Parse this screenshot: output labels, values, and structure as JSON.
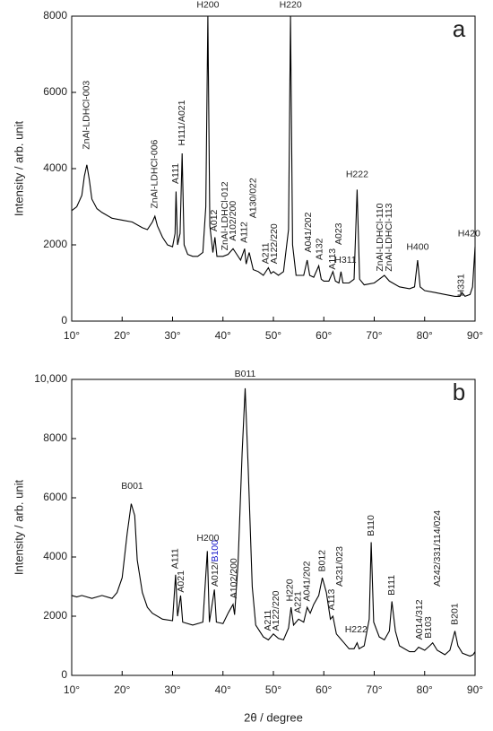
{
  "chart_data": [
    {
      "type": "line",
      "label": "a",
      "ylabel": "Intensity / arb. unit",
      "color": "#000000",
      "xlim": [
        10,
        90
      ],
      "ylim": [
        0,
        8000
      ],
      "xticks": [
        {
          "value": 10,
          "label": "10°"
        },
        {
          "value": 20,
          "label": "20°"
        },
        {
          "value": 30,
          "label": "30°"
        },
        {
          "value": 40,
          "label": "40°"
        },
        {
          "value": 50,
          "label": "50°"
        },
        {
          "value": 60,
          "label": "60°"
        },
        {
          "value": 70,
          "label": "70°"
        },
        {
          "value": 80,
          "label": "80°"
        },
        {
          "value": 90,
          "label": "90°"
        }
      ],
      "yticks": [
        0,
        2000,
        4000,
        6000,
        8000
      ],
      "x": [
        10,
        11,
        12,
        12.5,
        13,
        13.5,
        14,
        15,
        16,
        18,
        20,
        22,
        24,
        25,
        26,
        26.5,
        27,
        28,
        29,
        30,
        30.5,
        30.7,
        31,
        31.5,
        31.9,
        32.3,
        33,
        34,
        35,
        36,
        36.6,
        37,
        37.4,
        38,
        38.4,
        38.8,
        40,
        41,
        42,
        42.5,
        43.5,
        44.3,
        44.6,
        45.2,
        46,
        47,
        48,
        49,
        49.5,
        50,
        51,
        52,
        53,
        53.4,
        53.8,
        54.5,
        55,
        56,
        56.7,
        57.2,
        58,
        59,
        59.5,
        60,
        61,
        61.8,
        62.3,
        63,
        63.4,
        63.8,
        65,
        66,
        66.6,
        67.1,
        68,
        70,
        71,
        72,
        73,
        75,
        77,
        78,
        78.6,
        79.1,
        80,
        82,
        84,
        86,
        87,
        87.4,
        88,
        89,
        89.5,
        90
      ],
      "values": [
        2900,
        3000,
        3300,
        3800,
        4100,
        3700,
        3200,
        2950,
        2850,
        2700,
        2650,
        2600,
        2450,
        2400,
        2600,
        2750,
        2500,
        2200,
        2000,
        1950,
        2300,
        3400,
        2000,
        2300,
        4400,
        2000,
        1750,
        1700,
        1700,
        1800,
        3000,
        8000,
        2500,
        1800,
        2200,
        1700,
        1700,
        1750,
        1900,
        1800,
        1600,
        1900,
        1500,
        1800,
        1350,
        1300,
        1200,
        1400,
        1250,
        1300,
        1200,
        1300,
        2400,
        8000,
        2000,
        1200,
        1200,
        1200,
        1600,
        1200,
        1150,
        1450,
        1100,
        1050,
        1050,
        1300,
        1050,
        1000,
        1300,
        1000,
        1000,
        1100,
        3450,
        1100,
        950,
        1000,
        1100,
        1200,
        1050,
        900,
        850,
        900,
        1600,
        900,
        800,
        750,
        700,
        650,
        650,
        750,
        650,
        700,
        900,
        1950
      ],
      "annotations": [
        {
          "text": "ZnAl-LDHCl-003",
          "color": "#e00000",
          "x": 13,
          "y": 4500,
          "vertical": true
        },
        {
          "text": "ZnAl-LDHCl-006",
          "color": "#e00000",
          "x": 26.5,
          "y": 2950,
          "vertical": true
        },
        {
          "text": "A111",
          "color": "#222222",
          "x": 30.7,
          "y": 3600,
          "vertical": true
        },
        {
          "text": "H111/A021",
          "color": "#222222",
          "x": 31.9,
          "y": 4600,
          "vertical": true
        },
        {
          "text": "H200",
          "color": "#222222",
          "x": 37,
          "y": 8150,
          "vertical": false
        },
        {
          "text": "A012",
          "color": "#222222",
          "x": 38.3,
          "y": 2350,
          "vertical": true
        },
        {
          "text": "ZnAl-LDHCl-012",
          "color": "#e00000",
          "x": 40.4,
          "y": 1850,
          "vertical": true
        },
        {
          "text": "A102/200",
          "color": "#222222",
          "x": 42,
          "y": 2100,
          "vertical": true
        },
        {
          "text": "A112",
          "color": "#222222",
          "x": 44.3,
          "y": 2050,
          "vertical": true
        },
        {
          "text": "A130/022",
          "color": "#222222",
          "x": 46,
          "y": 2700,
          "vertical": true
        },
        {
          "text": "A211",
          "color": "#222222",
          "x": 48.5,
          "y": 1500,
          "vertical": true
        },
        {
          "text": "A122/220",
          "color": "#222222",
          "x": 50.2,
          "y": 1500,
          "vertical": true
        },
        {
          "text": "H220",
          "color": "#222222",
          "x": 53.4,
          "y": 8150,
          "vertical": false
        },
        {
          "text": "A041/202",
          "color": "#222222",
          "x": 57,
          "y": 1800,
          "vertical": true
        },
        {
          "text": "A132",
          "color": "#222222",
          "x": 59.2,
          "y": 1600,
          "vertical": true
        },
        {
          "text": "A113",
          "color": "#222222",
          "x": 61.8,
          "y": 1350,
          "vertical": true
        },
        {
          "text": "A023",
          "color": "#222222",
          "x": 63,
          "y": 2000,
          "vertical": true
        },
        {
          "text": "H311",
          "color": "#222222",
          "x": 64.3,
          "y": 1450,
          "vertical": false
        },
        {
          "text": "H222",
          "color": "#222222",
          "x": 66.6,
          "y": 3700,
          "vertical": false
        },
        {
          "text": "ZnAl-LDHCl-110",
          "color": "#e00000",
          "x": 71.2,
          "y": 1300,
          "vertical": true
        },
        {
          "text": "ZnAl-LDHCl-113",
          "color": "#e00000",
          "x": 73,
          "y": 1300,
          "vertical": true
        },
        {
          "text": "H400",
          "color": "#222222",
          "x": 78.6,
          "y": 1800,
          "vertical": false
        },
        {
          "text": "H331",
          "color": "#222222",
          "x": 87.3,
          "y": 650,
          "vertical": true
        },
        {
          "text": "H420",
          "color": "#222222",
          "x": 88.8,
          "y": 2150,
          "vertical": false
        }
      ]
    },
    {
      "type": "line",
      "label": "b",
      "ylabel": "Intensity / arb. unit",
      "xlabel": "2θ / degree",
      "color": "#000000",
      "xlim": [
        10,
        90
      ],
      "ylim": [
        0,
        10000
      ],
      "xticks": [
        {
          "value": 10,
          "label": "10°"
        },
        {
          "value": 20,
          "label": "20°"
        },
        {
          "value": 30,
          "label": "30°"
        },
        {
          "value": 40,
          "label": "40°"
        },
        {
          "value": 50,
          "label": "50°"
        },
        {
          "value": 60,
          "label": "60°"
        },
        {
          "value": 70,
          "label": "70°"
        },
        {
          "value": 80,
          "label": "80°"
        },
        {
          "value": 90,
          "label": "90°"
        }
      ],
      "yticks": [
        0,
        2000,
        4000,
        6000,
        8000,
        {
          "value": 10000,
          "label": "10,000"
        }
      ],
      "x": [
        10,
        11,
        12,
        14,
        16,
        18,
        19,
        20,
        21,
        21.8,
        22.5,
        23,
        24,
        25,
        26,
        28,
        30,
        30.6,
        31,
        31.6,
        32,
        34,
        36,
        36.9,
        37.3,
        38.3,
        38.7,
        40,
        41,
        42,
        42.3,
        43,
        43.8,
        44.4,
        45,
        45.8,
        46.5,
        48,
        49,
        50,
        51,
        52,
        53,
        53.5,
        54,
        55,
        56,
        56.7,
        57.3,
        58,
        59,
        59.7,
        60.5,
        61.3,
        61.8,
        62.5,
        64,
        65,
        66,
        66.6,
        67,
        68,
        69,
        69.4,
        69.9,
        71,
        72,
        73,
        73.5,
        74.2,
        75,
        77,
        78,
        78.8,
        80,
        81,
        81.6,
        82.5,
        84,
        85,
        86,
        86.6,
        87.5,
        89,
        89.6,
        90
      ],
      "values": [
        2700,
        2650,
        2700,
        2600,
        2700,
        2600,
        2800,
        3300,
        4800,
        5800,
        5400,
        3900,
        2800,
        2300,
        2100,
        1900,
        1850,
        3400,
        2000,
        2700,
        1800,
        1700,
        1800,
        4200,
        1800,
        2900,
        1800,
        1750,
        2100,
        2400,
        2050,
        3800,
        7500,
        9700,
        7000,
        3000,
        1700,
        1300,
        1200,
        1400,
        1250,
        1200,
        1600,
        2300,
        1700,
        1900,
        1800,
        2300,
        2100,
        2400,
        2700,
        3300,
        2800,
        1900,
        2000,
        1400,
        1100,
        900,
        900,
        1100,
        900,
        1000,
        1900,
        4500,
        1800,
        1300,
        1200,
        1500,
        2500,
        1500,
        1000,
        800,
        800,
        950,
        850,
        1000,
        1100,
        850,
        700,
        850,
        1500,
        1000,
        750,
        650,
        700,
        800
      ],
      "annotations": [
        {
          "text": "B001",
          "color": "#1a1acc",
          "x": 22,
          "y": 6200,
          "vertical": false
        },
        {
          "text": "A111",
          "color": "#222222",
          "x": 30.6,
          "y": 3600,
          "vertical": true
        },
        {
          "text": "A021",
          "color": "#222222",
          "x": 31.7,
          "y": 2800,
          "vertical": true
        },
        {
          "text": "H200",
          "color": "#222222",
          "x": 37,
          "y": 4450,
          "vertical": false
        },
        {
          "parts": [
            {
              "text": "A012/",
              "color": "#222222"
            },
            {
              "text": "B100",
              "color": "#1a1acc"
            }
          ],
          "x": 38.4,
          "y": 3000,
          "vertical": true
        },
        {
          "text": "A102/200",
          "color": "#222222",
          "x": 42.2,
          "y": 2600,
          "vertical": true
        },
        {
          "text": "B011",
          "color": "#1a1acc",
          "x": 44.4,
          "y": 10000,
          "vertical": false
        },
        {
          "text": "A211",
          "color": "#222222",
          "x": 49,
          "y": 1500,
          "vertical": true
        },
        {
          "text": "A122/220",
          "color": "#222222",
          "x": 50.6,
          "y": 1500,
          "vertical": true
        },
        {
          "text": "H220",
          "color": "#222222",
          "x": 53.3,
          "y": 2500,
          "vertical": true
        },
        {
          "text": "A221",
          "color": "#222222",
          "x": 54.9,
          "y": 2100,
          "vertical": true
        },
        {
          "text": "A041/202",
          "color": "#222222",
          "x": 56.7,
          "y": 2500,
          "vertical": true
        },
        {
          "text": "B012",
          "color": "#1a1acc",
          "x": 59.7,
          "y": 3500,
          "vertical": true
        },
        {
          "text": "A113",
          "color": "#222222",
          "x": 61.6,
          "y": 2200,
          "vertical": true
        },
        {
          "text": "A231/023",
          "color": "#222222",
          "x": 63.2,
          "y": 3000,
          "vertical": true
        },
        {
          "text": "H222",
          "color": "#222222",
          "x": 66.4,
          "y": 1350,
          "vertical": false
        },
        {
          "text": "B110",
          "color": "#1a1acc",
          "x": 69.4,
          "y": 4700,
          "vertical": true
        },
        {
          "text": "B111",
          "color": "#1a1acc",
          "x": 73.5,
          "y": 2700,
          "vertical": true
        },
        {
          "text": "A014/312",
          "color": "#222222",
          "x": 79,
          "y": 1200,
          "vertical": true
        },
        {
          "text": "B103",
          "color": "#1a1acc",
          "x": 80.8,
          "y": 1250,
          "vertical": true
        },
        {
          "text": "A242/331/114/024",
          "color": "#222222",
          "x": 82.6,
          "y": 3000,
          "vertical": true
        },
        {
          "text": "B201",
          "color": "#1a1acc",
          "x": 86,
          "y": 1700,
          "vertical": true
        }
      ]
    }
  ]
}
